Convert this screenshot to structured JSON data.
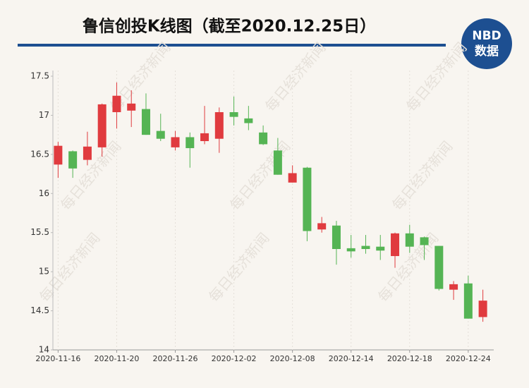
{
  "chart_data": {
    "type": "candlestick",
    "title": "鲁信创投K线图（截至2020.12.25日）",
    "logo": {
      "top": "NBD",
      "bottom": "数据"
    },
    "watermark": "每日经济新闻",
    "categories": [
      "2020-11-16",
      null,
      null,
      null,
      "2020-11-20",
      null,
      null,
      null,
      "2020-11-26",
      null,
      null,
      null,
      "2020-12-02",
      null,
      null,
      null,
      "2020-12-08",
      null,
      null,
      null,
      "2020-12-14",
      null,
      null,
      null,
      "2020-12-18",
      null,
      null,
      null,
      "2020-12-24",
      null
    ],
    "open": [
      16.37,
      16.54,
      16.43,
      16.59,
      17.04,
      17.06,
      17.08,
      16.8,
      16.59,
      16.72,
      16.67,
      16.7,
      17.04,
      16.96,
      16.78,
      16.55,
      16.14,
      16.33,
      15.54,
      15.59,
      15.3,
      15.33,
      15.32,
      15.2,
      15.49,
      15.44,
      15.33,
      14.77,
      14.85,
      14.42
    ],
    "high": [
      16.66,
      16.55,
      16.79,
      17.15,
      17.42,
      17.32,
      17.28,
      17.02,
      16.8,
      16.78,
      17.12,
      17.1,
      17.24,
      17.12,
      16.87,
      16.71,
      16.36,
      16.34,
      15.7,
      15.65,
      15.47,
      15.47,
      15.47,
      15.5,
      15.6,
      15.45,
      15.33,
      14.88,
      14.95,
      14.77
    ],
    "low": [
      16.2,
      16.2,
      16.36,
      16.47,
      16.83,
      16.85,
      16.75,
      16.67,
      16.55,
      16.33,
      16.63,
      16.52,
      16.87,
      16.81,
      16.62,
      16.24,
      16.14,
      15.39,
      15.5,
      15.09,
      15.18,
      15.23,
      15.15,
      15.05,
      15.24,
      15.15,
      14.76,
      14.64,
      14.4,
      14.36
    ],
    "close": [
      16.61,
      16.32,
      16.6,
      17.14,
      17.25,
      17.15,
      16.75,
      16.7,
      16.72,
      16.58,
      16.77,
      17.04,
      16.98,
      16.9,
      16.63,
      16.24,
      16.26,
      15.52,
      15.62,
      15.29,
      15.26,
      15.29,
      15.27,
      15.49,
      15.32,
      15.34,
      14.78,
      14.84,
      14.4,
      14.63
    ],
    "up_color": "#e03b3f",
    "down_color": "#55b454",
    "ylim": [
      14,
      17.5
    ],
    "yticks": [
      14,
      14.5,
      15,
      15.5,
      16,
      16.5,
      17,
      17.5
    ]
  }
}
